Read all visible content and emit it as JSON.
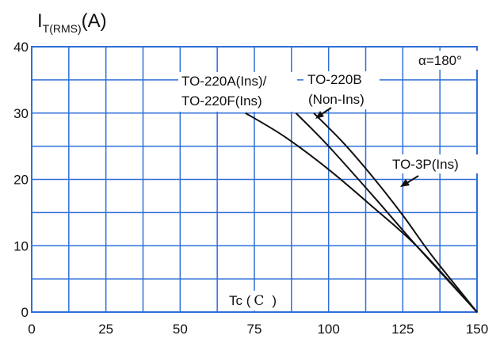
{
  "chart_data": {
    "type": "line",
    "ylabel_main": "I",
    "ylabel_sub": "T(RMS)",
    "ylabel_unit": "(A)",
    "xlabel": "Tc (",
    "xlabel_unit": "C",
    "xlabel_close": ")",
    "xlim": [
      0,
      150
    ],
    "ylim": [
      0,
      40
    ],
    "x_ticks": [
      0,
      25,
      50,
      75,
      100,
      125,
      150
    ],
    "y_ticks": [
      0,
      10,
      20,
      30,
      40
    ],
    "x_tick_labels": [
      "0",
      "25",
      "50",
      "75",
      "100",
      "125",
      "150"
    ],
    "y_tick_labels": [
      "0",
      "10",
      "20",
      "30",
      "40"
    ],
    "grid": true,
    "condition_label": "α=180°",
    "series": [
      {
        "name_lines": [
          "TO-220A(Ins)/",
          "TO-220F(Ins)"
        ],
        "x": [
          72,
          85,
          100,
          115,
          130,
          150
        ],
        "y": [
          30,
          26.5,
          21.5,
          15.8,
          9.8,
          0
        ]
      },
      {
        "name_lines": [
          "TO-220B",
          "(Non-Ins)"
        ],
        "x": [
          89,
          100,
          115,
          130,
          150
        ],
        "y": [
          30,
          25,
          17.5,
          9.8,
          0
        ]
      },
      {
        "name_lines": [
          "TO-3P(Ins)"
        ],
        "x": [
          95,
          105,
          115,
          125,
          135,
          150
        ],
        "y": [
          30,
          25.5,
          20.3,
          14.6,
          8.4,
          0
        ]
      }
    ],
    "colors": {
      "grid": "#2f6fd8",
      "border": "#2f6fd8",
      "curve": "#111111",
      "text": "#111111"
    }
  }
}
